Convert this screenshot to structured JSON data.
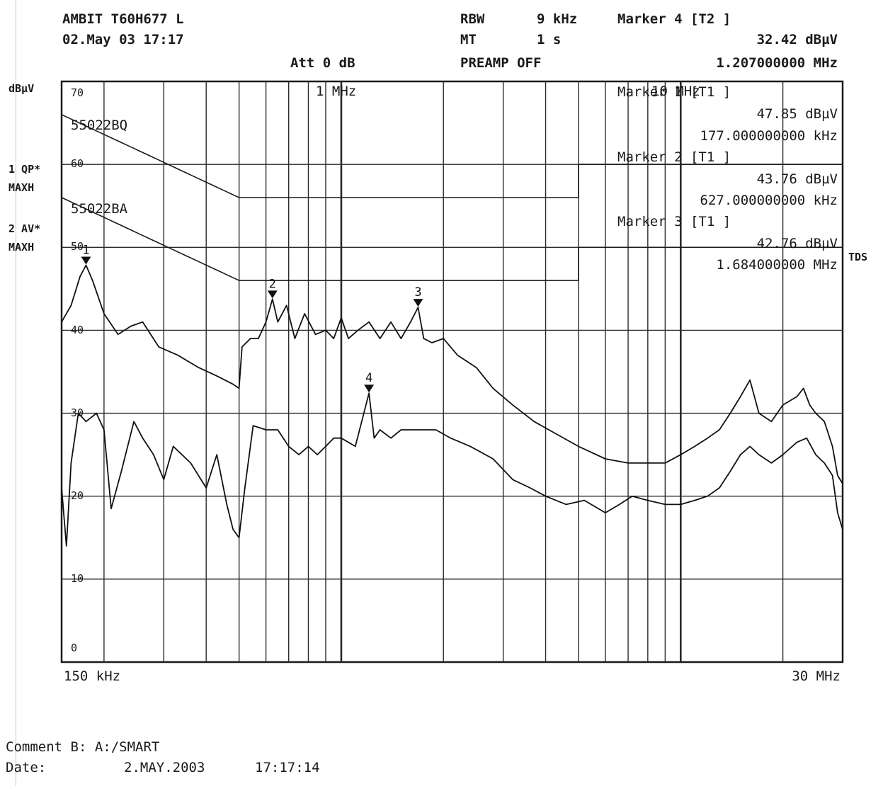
{
  "header": {
    "device": "AMBIT T60H677 L",
    "date": "02.May 03 17:17",
    "att": "Att 0 dB",
    "rbw_label": "RBW",
    "rbw_value": "9 kHz",
    "mt_label": "MT",
    "mt_value": "1 s",
    "preamp": "PREAMP OFF",
    "marker4_title": "Marker 4 [T2 ]",
    "marker4_level": "32.42 dBµV",
    "marker4_freq": "1.207000000 MHz"
  },
  "left_labels": {
    "unit": "dBµV",
    "trace1_line1": "1 QP*",
    "trace1_line2": "MAXH",
    "trace2_line1": "2 AV*",
    "trace2_line2": "MAXH"
  },
  "right_label": "TDS",
  "markers": [
    {
      "title": "Marker 1 [T1 ]",
      "level": "47.85 dBµV",
      "freq": "177.000000000 kHz"
    },
    {
      "title": "Marker 2 [T1 ]",
      "level": "43.76 dBµV",
      "freq": "627.000000000 kHz"
    },
    {
      "title": "Marker 3 [T1 ]",
      "level": "42.76 dBµV",
      "freq": "1.684000000 MHz"
    }
  ],
  "footer": {
    "comment": "Comment B: A:/SMART",
    "date_label": "Date:",
    "date_value": "2.MAY.2003",
    "time_value": "17:17:14"
  },
  "chart_data": {
    "type": "line",
    "xscale": "log",
    "xlim_hz": [
      150000,
      30000000
    ],
    "ylim": [
      0,
      70
    ],
    "ylabel": "dBµV",
    "x_start_label": "150 kHz",
    "x_end_label": "30 MHz",
    "x_annotations": [
      "1 MHz",
      "10 MHz"
    ],
    "y_ticks": [
      0,
      10,
      20,
      30,
      40,
      50,
      60,
      70
    ],
    "grid": true,
    "limit_lines": [
      {
        "name": "55022BQ",
        "points": [
          [
            150000,
            66
          ],
          [
            500000,
            56
          ],
          [
            5000000,
            56
          ],
          [
            5000000,
            60
          ],
          [
            30000000,
            60
          ]
        ]
      },
      {
        "name": "55022BA",
        "points": [
          [
            150000,
            56
          ],
          [
            500000,
            46
          ],
          [
            5000000,
            46
          ],
          [
            5000000,
            50
          ],
          [
            30000000,
            50
          ]
        ]
      }
    ],
    "series": [
      {
        "name": "1 QP",
        "points": [
          [
            150000,
            41
          ],
          [
            160000,
            43
          ],
          [
            170000,
            46.5
          ],
          [
            177000,
            47.85
          ],
          [
            185000,
            46
          ],
          [
            200000,
            42
          ],
          [
            220000,
            39.5
          ],
          [
            240000,
            40.5
          ],
          [
            260000,
            41
          ],
          [
            290000,
            38
          ],
          [
            330000,
            37
          ],
          [
            380000,
            35.5
          ],
          [
            430000,
            34.5
          ],
          [
            480000,
            33.5
          ],
          [
            500000,
            33
          ],
          [
            510000,
            38
          ],
          [
            540000,
            39
          ],
          [
            570000,
            39
          ],
          [
            600000,
            41
          ],
          [
            627000,
            43.76
          ],
          [
            650000,
            41
          ],
          [
            690000,
            43
          ],
          [
            730000,
            39
          ],
          [
            780000,
            42
          ],
          [
            840000,
            39.5
          ],
          [
            900000,
            40
          ],
          [
            950000,
            39
          ],
          [
            1000000,
            41.5
          ],
          [
            1050000,
            39
          ],
          [
            1120000,
            40
          ],
          [
            1207000,
            41
          ],
          [
            1300000,
            39
          ],
          [
            1400000,
            41
          ],
          [
            1500000,
            39
          ],
          [
            1600000,
            41
          ],
          [
            1684000,
            42.76
          ],
          [
            1750000,
            39
          ],
          [
            1850000,
            38.5
          ],
          [
            2000000,
            39
          ],
          [
            2200000,
            37
          ],
          [
            2500000,
            35.5
          ],
          [
            2800000,
            33
          ],
          [
            3200000,
            31
          ],
          [
            3700000,
            29
          ],
          [
            4300000,
            27.5
          ],
          [
            5000000,
            26
          ],
          [
            6000000,
            24.5
          ],
          [
            7000000,
            24
          ],
          [
            8000000,
            24
          ],
          [
            9000000,
            24
          ],
          [
            10000000,
            25
          ],
          [
            11000000,
            26
          ],
          [
            12000000,
            27
          ],
          [
            13000000,
            28
          ],
          [
            14000000,
            30
          ],
          [
            15000000,
            32
          ],
          [
            16000000,
            34
          ],
          [
            17000000,
            30
          ],
          [
            18500000,
            29
          ],
          [
            20000000,
            31
          ],
          [
            22000000,
            32
          ],
          [
            23000000,
            33
          ],
          [
            24000000,
            31
          ],
          [
            25000000,
            30
          ],
          [
            26500000,
            29
          ],
          [
            28000000,
            26
          ],
          [
            29000000,
            22.5
          ],
          [
            30000000,
            21.5
          ]
        ]
      },
      {
        "name": "2 AV",
        "points": [
          [
            150000,
            21
          ],
          [
            155000,
            14
          ],
          [
            160000,
            24
          ],
          [
            168000,
            30
          ],
          [
            177000,
            29
          ],
          [
            190000,
            30
          ],
          [
            200000,
            28
          ],
          [
            210000,
            18.5
          ],
          [
            225000,
            23
          ],
          [
            245000,
            29
          ],
          [
            260000,
            27
          ],
          [
            280000,
            25
          ],
          [
            300000,
            22
          ],
          [
            320000,
            26
          ],
          [
            360000,
            24
          ],
          [
            400000,
            21
          ],
          [
            430000,
            25
          ],
          [
            460000,
            19
          ],
          [
            480000,
            16
          ],
          [
            500000,
            15
          ],
          [
            520000,
            21
          ],
          [
            550000,
            28.5
          ],
          [
            600000,
            28
          ],
          [
            650000,
            28
          ],
          [
            700000,
            26
          ],
          [
            750000,
            25
          ],
          [
            800000,
            26
          ],
          [
            850000,
            25
          ],
          [
            900000,
            26
          ],
          [
            950000,
            27
          ],
          [
            1000000,
            27
          ],
          [
            1100000,
            26
          ],
          [
            1207000,
            32.42
          ],
          [
            1250000,
            27
          ],
          [
            1300000,
            28
          ],
          [
            1400000,
            27
          ],
          [
            1500000,
            28
          ],
          [
            1600000,
            28
          ],
          [
            1700000,
            28
          ],
          [
            1900000,
            28
          ],
          [
            2100000,
            27
          ],
          [
            2400000,
            26
          ],
          [
            2800000,
            24.5
          ],
          [
            3200000,
            22
          ],
          [
            3600000,
            21
          ],
          [
            4000000,
            20
          ],
          [
            4600000,
            19
          ],
          [
            5200000,
            19.5
          ],
          [
            6000000,
            18
          ],
          [
            6600000,
            19
          ],
          [
            7200000,
            20
          ],
          [
            8000000,
            19.5
          ],
          [
            9000000,
            19
          ],
          [
            10000000,
            19
          ],
          [
            11000000,
            19.5
          ],
          [
            12000000,
            20
          ],
          [
            13000000,
            21
          ],
          [
            14000000,
            23
          ],
          [
            15000000,
            25
          ],
          [
            16000000,
            26
          ],
          [
            17000000,
            25
          ],
          [
            18500000,
            24
          ],
          [
            20000000,
            25
          ],
          [
            22000000,
            26.5
          ],
          [
            23500000,
            27
          ],
          [
            25000000,
            25
          ],
          [
            26500000,
            24
          ],
          [
            28000000,
            22.5
          ],
          [
            29000000,
            18
          ],
          [
            30000000,
            16
          ]
        ]
      }
    ],
    "markers": [
      {
        "label": "1",
        "trace": "1 QP",
        "x": 177000,
        "y": 47.85
      },
      {
        "label": "2",
        "trace": "1 QP",
        "x": 627000,
        "y": 43.76
      },
      {
        "label": "3",
        "trace": "1 QP",
        "x": 1684000,
        "y": 42.76
      },
      {
        "label": "4",
        "trace": "2 AV",
        "x": 1207000,
        "y": 32.42
      }
    ]
  }
}
